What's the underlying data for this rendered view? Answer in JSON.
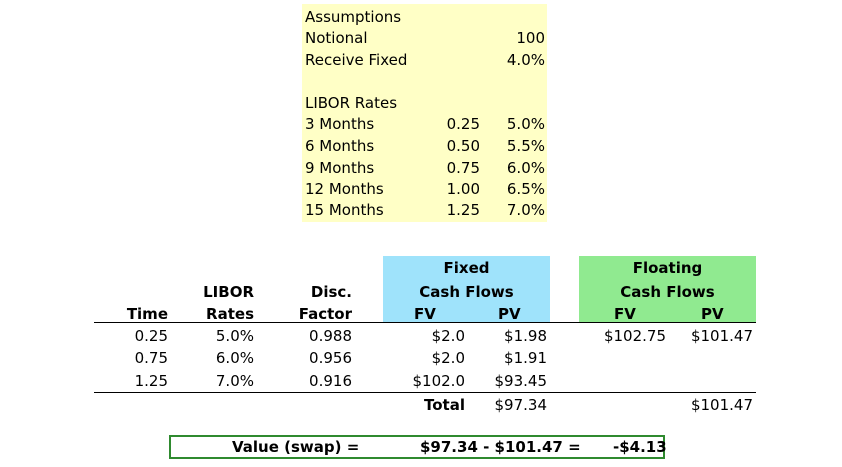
{
  "assumptions": {
    "title": "Assumptions",
    "notional_label": "Notional",
    "notional_value": "100",
    "receive_fixed_label": "Receive Fixed",
    "receive_fixed_value": "4.0%",
    "libor_title": "LIBOR Rates",
    "rows": [
      {
        "label": "3 Months",
        "time": "0.25",
        "rate": "5.0%"
      },
      {
        "label": "6 Months",
        "time": "0.50",
        "rate": "5.5%"
      },
      {
        "label": "9 Months",
        "time": "0.75",
        "rate": "6.0%"
      },
      {
        "label": "12 Months",
        "time": "1.00",
        "rate": "6.5%"
      },
      {
        "label": "15 Months",
        "time": "1.25",
        "rate": "7.0%"
      }
    ]
  },
  "headers": {
    "time": "Time",
    "libor_1": "LIBOR",
    "libor_2": "Rates",
    "disc_1": "Disc.",
    "disc_2": "Factor",
    "fixed_1": "Fixed",
    "fixed_2": "Cash Flows",
    "fixed_fv": "FV",
    "fixed_pv": "PV",
    "float_1": "Floating",
    "float_2": "Cash Flows",
    "float_fv": "FV",
    "float_pv": "PV"
  },
  "rows": [
    {
      "time": "0.25",
      "rate": "5.0%",
      "disc": "0.988",
      "fixed_fv": "$2.0",
      "fixed_pv": "$1.98",
      "float_fv": "$102.75",
      "float_pv": "$101.47"
    },
    {
      "time": "0.75",
      "rate": "6.0%",
      "disc": "0.956",
      "fixed_fv": "$2.0",
      "fixed_pv": "$1.91",
      "float_fv": "",
      "float_pv": ""
    },
    {
      "time": "1.25",
      "rate": "7.0%",
      "disc": "0.916",
      "fixed_fv": "$102.0",
      "fixed_pv": "$93.45",
      "float_fv": "",
      "float_pv": ""
    }
  ],
  "totals": {
    "label": "Total",
    "fixed_pv": "$97.34",
    "float_pv": "$101.47"
  },
  "value": {
    "label": "Value (swap) =",
    "formula": "$97.34 - $101.47 =",
    "result": "-$4.13"
  },
  "colors": {
    "assumptions_bg": "#ffffc6",
    "fixed_bg": "#9fe3fb",
    "floating_bg": "#90ea90",
    "value_border": "#2f8a2f"
  }
}
